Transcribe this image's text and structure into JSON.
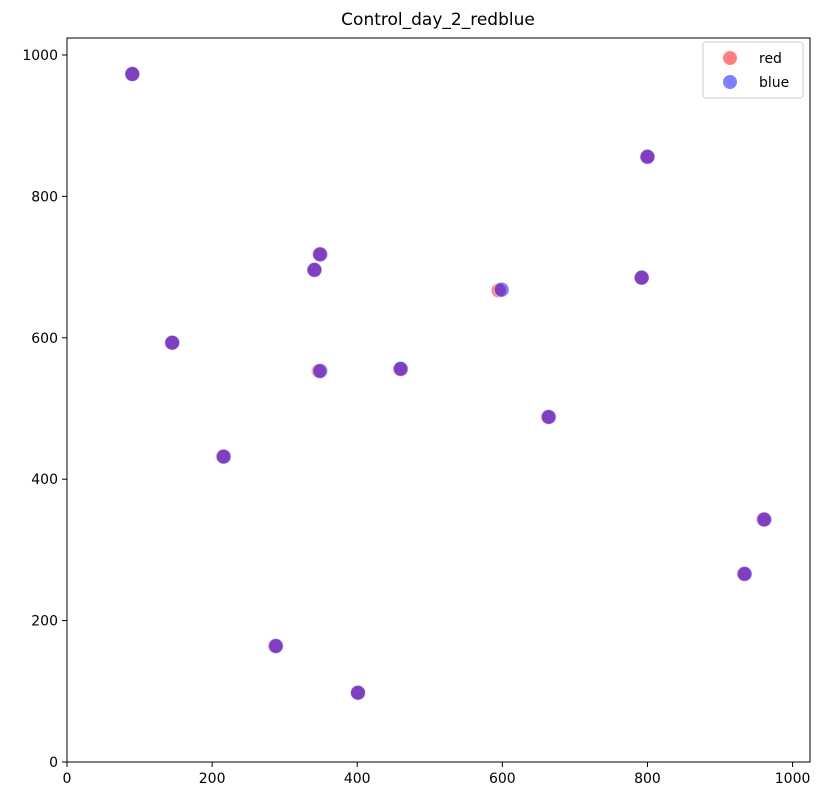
{
  "chart_data": {
    "type": "scatter",
    "title": "Control_day_2_redblue",
    "xlabel": "",
    "ylabel": "",
    "xlim": [
      0,
      1024
    ],
    "ylim": [
      0,
      1024
    ],
    "xticks": [
      0,
      200,
      400,
      600,
      800,
      1000
    ],
    "yticks": [
      0,
      200,
      400,
      600,
      800,
      1000
    ],
    "grid": false,
    "legend_position": "top-right",
    "series": [
      {
        "name": "red",
        "color": "#ff0000",
        "points": [
          {
            "x": 90,
            "y": 973
          },
          {
            "x": 800,
            "y": 856
          },
          {
            "x": 348,
            "y": 718
          },
          {
            "x": 341,
            "y": 696
          },
          {
            "x": 792,
            "y": 685
          },
          {
            "x": 595,
            "y": 667
          },
          {
            "x": 145,
            "y": 593
          },
          {
            "x": 459,
            "y": 556
          },
          {
            "x": 347,
            "y": 553
          },
          {
            "x": 663,
            "y": 488
          },
          {
            "x": 215,
            "y": 432
          },
          {
            "x": 960,
            "y": 343
          },
          {
            "x": 933,
            "y": 266
          },
          {
            "x": 287,
            "y": 164
          },
          {
            "x": 401,
            "y": 98
          }
        ]
      },
      {
        "name": "blue",
        "color": "#0000ff",
        "points": [
          {
            "x": 90,
            "y": 973
          },
          {
            "x": 800,
            "y": 856
          },
          {
            "x": 349,
            "y": 718
          },
          {
            "x": 341,
            "y": 696
          },
          {
            "x": 792,
            "y": 685
          },
          {
            "x": 599,
            "y": 668
          },
          {
            "x": 145,
            "y": 593
          },
          {
            "x": 460,
            "y": 556
          },
          {
            "x": 349,
            "y": 553
          },
          {
            "x": 664,
            "y": 488
          },
          {
            "x": 216,
            "y": 432
          },
          {
            "x": 961,
            "y": 343
          },
          {
            "x": 934,
            "y": 266
          },
          {
            "x": 288,
            "y": 164
          },
          {
            "x": 401,
            "y": 98
          }
        ]
      }
    ]
  }
}
